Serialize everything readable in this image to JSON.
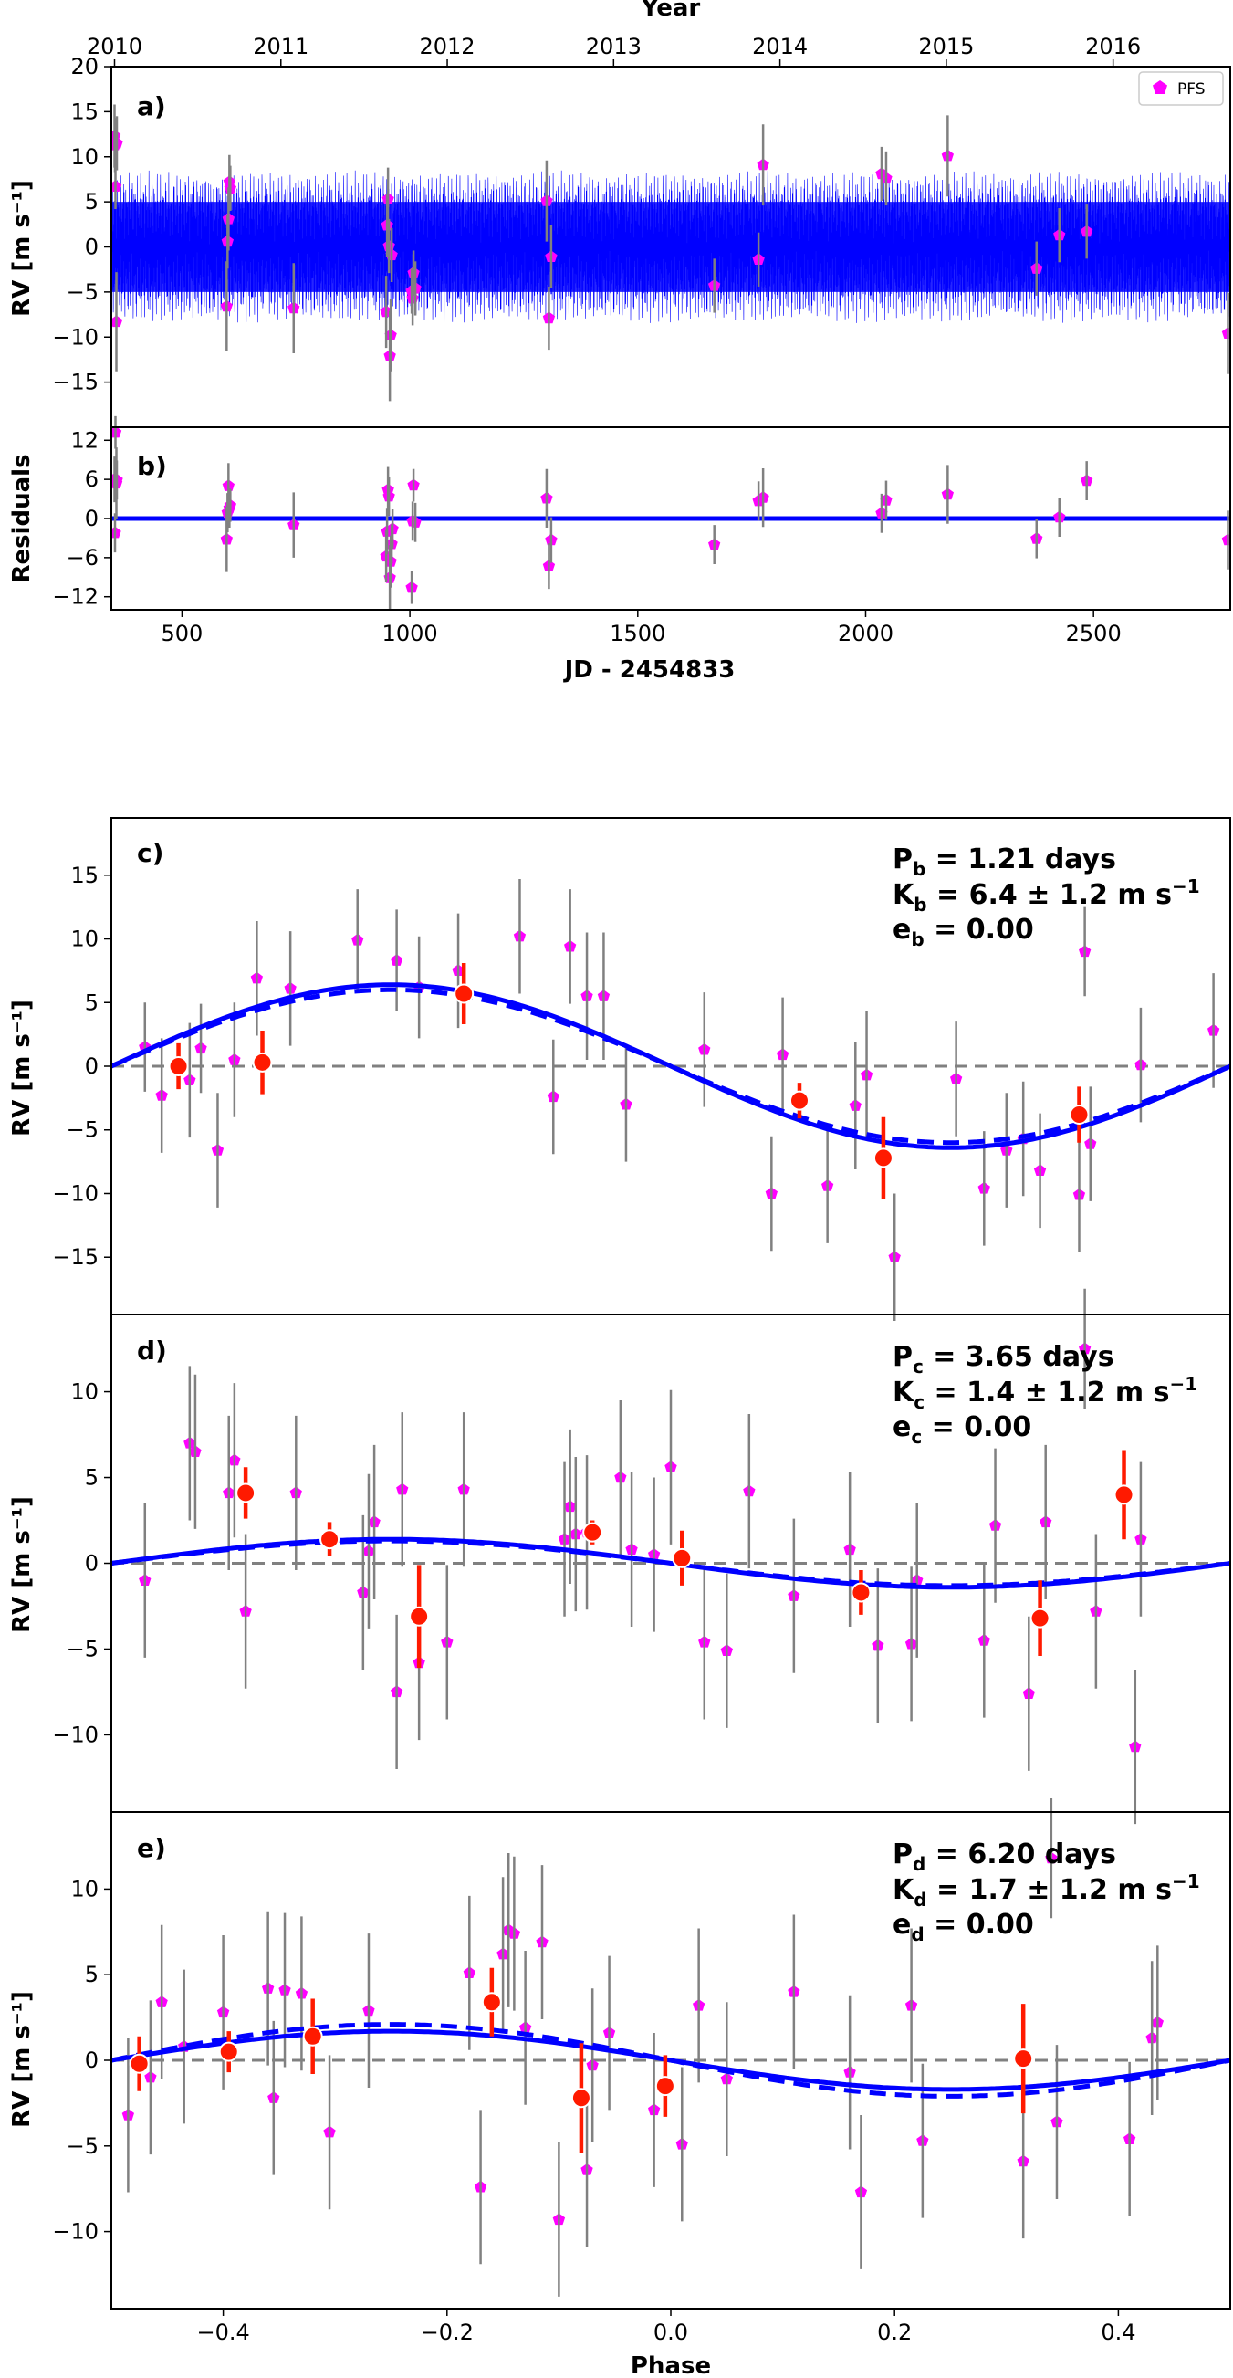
{
  "chart_data": [
    {
      "type": "scatter",
      "panel": "a)",
      "title": "",
      "xlabel": "",
      "ylabel": "RV [m s⁻¹]",
      "top_axis_label": "Year",
      "top_ticks": [
        "2010",
        "2011",
        "2012",
        "2013",
        "2014",
        "2015",
        "2016"
      ],
      "top_tick_jd": [
        352,
        717,
        1082,
        1447,
        1812,
        2177,
        2543
      ],
      "xlim": [
        345,
        2800
      ],
      "ylim": [
        -20,
        20
      ],
      "yticks": [
        -15,
        -10,
        -5,
        0,
        5,
        10,
        15,
        20
      ],
      "legend": {
        "label": "PFS",
        "location": "top-right"
      },
      "model": {
        "description": "3-planet Keplerian model curve",
        "amplitude_m_s": 8.5
      },
      "series": [
        {
          "name": "PFS",
          "x": [
            352,
            353,
            354,
            356,
            357,
            598,
            600,
            602,
            604,
            606,
            745,
            948,
            950,
            952,
            954,
            956,
            958,
            960,
            1004,
            1006,
            1008,
            1012,
            1300,
            1305,
            1310,
            1668,
            1765,
            1775,
            2035,
            2045,
            2180,
            2375,
            2425,
            2485,
            2795
          ],
          "y": [
            12.3,
            11.3,
            6.7,
            -8.3,
            11.5,
            -6.6,
            0.6,
            3.1,
            7.2,
            6.5,
            -6.8,
            -7.2,
            2.4,
            5.3,
            0.1,
            -12.1,
            -9.8,
            -0.9,
            -4.9,
            -5.7,
            -2.9,
            -4.6,
            5.1,
            -7.9,
            -1.1,
            -4.3,
            -1.4,
            9.1,
            8.1,
            7.6,
            10.1,
            -2.4,
            1.3,
            1.7,
            -9.6
          ],
          "err": [
            3.5,
            3,
            2.5,
            5.5,
            3,
            5,
            3,
            3.5,
            3,
            2.5,
            5,
            4,
            3.5,
            3.5,
            3,
            5,
            4,
            3,
            2.5,
            3,
            2.5,
            3,
            4.5,
            3.5,
            3.5,
            3,
            3,
            4.5,
            3,
            3,
            4.5,
            3,
            3,
            3,
            4.5
          ]
        }
      ]
    },
    {
      "type": "scatter",
      "panel": "b)",
      "xlabel": "JD - 2454833",
      "ylabel": "Residuals",
      "xlim": [
        345,
        2800
      ],
      "xticks": [
        500,
        1000,
        1500,
        2000,
        2500
      ],
      "ylim": [
        -14,
        14
      ],
      "yticks": [
        -12,
        -6,
        0,
        6,
        12
      ],
      "series": [
        {
          "name": "PFS",
          "x": [
            352,
            353,
            354,
            356,
            357,
            598,
            600,
            602,
            604,
            606,
            745,
            948,
            950,
            952,
            954,
            956,
            958,
            960,
            962,
            1004,
            1006,
            1008,
            1012,
            1300,
            1305,
            1310,
            1668,
            1765,
            1775,
            2035,
            2045,
            2180,
            2375,
            2425,
            2485,
            2795
          ],
          "y": [
            6,
            -2.2,
            13.2,
            5.4,
            5.9,
            -3.2,
            0.9,
            5,
            1.6,
            2,
            -1,
            -5.8,
            -2,
            4.4,
            3.4,
            -9.1,
            -6.6,
            -3.9,
            -1.6,
            -10.6,
            -0.4,
            5.1,
            -0.6,
            3.1,
            -7.3,
            -3.3,
            -4,
            2.7,
            3.2,
            0.8,
            2.8,
            3.7,
            -3.1,
            0.2,
            5.8,
            -3.3
          ],
          "err": [
            3.5,
            3,
            2.5,
            5.5,
            3,
            5,
            3,
            3.5,
            3,
            2.5,
            5,
            4,
            3.5,
            3.5,
            3,
            5,
            4,
            3,
            3,
            2.5,
            3,
            2.5,
            3,
            4.5,
            3.5,
            3.5,
            3,
            3,
            4.5,
            3,
            3,
            4.5,
            3,
            3,
            3,
            4.5
          ]
        }
      ]
    },
    {
      "type": "scatter",
      "panel": "c)",
      "xlabel": "",
      "ylabel": "RV [m s⁻¹]",
      "xlim": [
        -0.5,
        0.5
      ],
      "ylim": [
        -19.5,
        19.5
      ],
      "yticks": [
        -15,
        -10,
        -5,
        0,
        5,
        10,
        15
      ],
      "annotation": {
        "period": "P",
        "sub_p": "b",
        "period_text": " = 1.21 days",
        "amp": "K",
        "sub_k": "b",
        "amp_text": " = 6.4 ± 1.2 m s",
        "amp_exp": "−1",
        "ecc": "e",
        "sub_e": "b",
        "ecc_text": " = 0.00"
      },
      "model": {
        "solid_amplitude": 6.4,
        "dashed_amplitude": 6.0
      },
      "series": [
        {
          "name": "PFS",
          "x": [
            -0.47,
            -0.455,
            -0.43,
            -0.42,
            -0.405,
            -0.39,
            -0.37,
            -0.34,
            -0.28,
            -0.245,
            -0.225,
            -0.19,
            -0.135,
            -0.105,
            -0.09,
            -0.075,
            -0.06,
            -0.04,
            0.03,
            0.09,
            0.1,
            0.14,
            0.165,
            0.175,
            0.2,
            0.255,
            0.28,
            0.3,
            0.315,
            0.33,
            0.365,
            0.37,
            0.375,
            0.42,
            0.485
          ],
          "y": [
            1.5,
            -2.3,
            -1.1,
            1.4,
            -6.6,
            0.5,
            6.9,
            6.1,
            9.9,
            8.3,
            6.2,
            7.5,
            10.2,
            -2.4,
            9.4,
            5.5,
            5.5,
            -3,
            1.3,
            -10,
            0.9,
            -9.4,
            -3.1,
            -0.7,
            -15,
            -1,
            -9.6,
            -6.6,
            -5.7,
            -8.2,
            -10.1,
            9,
            -6.1,
            0.1,
            2.8
          ],
          "err": [
            3.5,
            4.5,
            4.5,
            3.5,
            4.5,
            4.5,
            4.5,
            4.5,
            4,
            4,
            4,
            4.5,
            4.5,
            4.5,
            4.5,
            5,
            5,
            4.5,
            4.5,
            4.5,
            4.5,
            4.5,
            5,
            5,
            5,
            4.5,
            4.5,
            4.5,
            4.5,
            4.5,
            4.5,
            3.5,
            4.5,
            4.5,
            4.5
          ]
        },
        {
          "name": "Binned",
          "x": [
            -0.44,
            -0.365,
            -0.185,
            0.115,
            0.19,
            0.365
          ],
          "y": [
            0,
            0.3,
            5.7,
            -2.7,
            -7.2,
            -3.8
          ],
          "err": [
            1.8,
            2.5,
            2.4,
            1.4,
            3.2,
            2.2
          ]
        }
      ]
    },
    {
      "type": "scatter",
      "panel": "d)",
      "xlabel": "",
      "ylabel": "RV [m s⁻¹]",
      "xlim": [
        -0.5,
        0.5
      ],
      "ylim": [
        -14.5,
        14.5
      ],
      "yticks": [
        -10,
        -5,
        0,
        5,
        10
      ],
      "annotation": {
        "period": "P",
        "sub_p": "c",
        "period_text": " = 3.65 days",
        "amp": "K",
        "sub_k": "c",
        "amp_text": " = 1.4 ± 1.2 m s",
        "amp_exp": "−1",
        "ecc": "e",
        "sub_e": "c",
        "ecc_text": " = 0.00"
      },
      "model": {
        "solid_amplitude": 1.4,
        "dashed_amplitude": 1.3
      },
      "series": [
        {
          "name": "PFS",
          "x": [
            -0.47,
            -0.43,
            -0.425,
            -0.395,
            -0.39,
            -0.38,
            -0.335,
            -0.275,
            -0.27,
            -0.265,
            -0.245,
            -0.24,
            -0.225,
            -0.2,
            -0.185,
            -0.095,
            -0.09,
            -0.085,
            -0.075,
            -0.045,
            -0.035,
            -0.015,
            0.0,
            0.03,
            0.05,
            0.07,
            0.11,
            0.16,
            0.185,
            0.215,
            0.22,
            0.28,
            0.29,
            0.32,
            0.335,
            0.37,
            0.38,
            0.415,
            0.42
          ],
          "y": [
            -1,
            7,
            6.5,
            4.1,
            6,
            -2.8,
            4.1,
            -1.7,
            0.7,
            2.4,
            -7.5,
            4.3,
            -5.8,
            -4.6,
            4.3,
            1.4,
            3.3,
            1.7,
            1.8,
            5,
            0.8,
            0.5,
            5.6,
            -4.6,
            -5.1,
            4.2,
            -1.9,
            0.8,
            -4.8,
            -4.7,
            -1,
            -4.5,
            2.2,
            -7.6,
            2.4,
            12.5,
            -2.8,
            -10.7,
            1.4
          ],
          "err": [
            4.5,
            4.5,
            4.5,
            4.5,
            4.5,
            4.5,
            4.5,
            4.5,
            4.5,
            4.5,
            4.5,
            4.5,
            4.5,
            4.5,
            4.5,
            4.5,
            4.5,
            4.5,
            4.5,
            4.5,
            4.5,
            4.5,
            4.5,
            4.5,
            4.5,
            4.5,
            4.5,
            4.5,
            4.5,
            4.5,
            4.5,
            4.5,
            4.5,
            4.5,
            4.5,
            3.5,
            4.5,
            4.5,
            4.5
          ]
        },
        {
          "name": "Binned",
          "x": [
            -0.38,
            -0.305,
            -0.225,
            -0.07,
            0.01,
            0.17,
            0.33,
            0.405
          ],
          "y": [
            4.1,
            1.4,
            -3.1,
            1.8,
            0.3,
            -1.7,
            -3.2,
            4
          ],
          "err": [
            1.5,
            1,
            3,
            0.7,
            1.6,
            1.3,
            2.2,
            2.6
          ]
        }
      ]
    },
    {
      "type": "scatter",
      "panel": "e)",
      "xlabel": "Phase",
      "ylabel": "RV [m s⁻¹]",
      "xlim": [
        -0.5,
        0.5
      ],
      "xticks": [
        -0.4,
        -0.2,
        0.0,
        0.2,
        0.4
      ],
      "xticklabels": [
        "−0.4",
        "−0.2",
        "0.0",
        "0.2",
        "0.4"
      ],
      "ylim": [
        -14.5,
        14.5
      ],
      "yticks": [
        -10,
        -5,
        0,
        5,
        10
      ],
      "annotation": {
        "period": "P",
        "sub_p": "d",
        "period_text": " = 6.20 days",
        "amp": "K",
        "sub_k": "d",
        "amp_text": " = 1.7 ± 1.2 m s",
        "amp_exp": "−1",
        "ecc": "e",
        "sub_e": "d",
        "ecc_text": " = 0.00"
      },
      "model": {
        "solid_amplitude": 1.7,
        "dashed_amplitude": 2.1
      },
      "series": [
        {
          "name": "PFS",
          "x": [
            -0.485,
            -0.465,
            -0.455,
            -0.435,
            -0.4,
            -0.36,
            -0.355,
            -0.345,
            -0.33,
            -0.305,
            -0.27,
            -0.18,
            -0.17,
            -0.15,
            -0.145,
            -0.14,
            -0.13,
            -0.115,
            -0.1,
            -0.075,
            -0.07,
            -0.055,
            -0.015,
            0.01,
            0.025,
            0.05,
            0.11,
            0.16,
            0.17,
            0.215,
            0.225,
            0.315,
            0.34,
            0.345,
            0.41,
            0.43,
            0.435
          ],
          "y": [
            -3.2,
            -1,
            3.4,
            0.8,
            2.8,
            4.2,
            -2.2,
            4.1,
            3.9,
            -4.2,
            2.9,
            5.1,
            -7.4,
            6.2,
            7.6,
            7.4,
            1.9,
            6.9,
            -9.3,
            -6.4,
            -0.3,
            1.6,
            -2.9,
            -4.9,
            3.2,
            -1.1,
            4,
            -0.7,
            -7.7,
            3.2,
            -4.7,
            -5.9,
            11.8,
            -3.6,
            -4.6,
            1.3,
            2.2
          ],
          "err": [
            4.5,
            4.5,
            4.5,
            4.5,
            4.5,
            4.5,
            4.5,
            4.5,
            4.5,
            4.5,
            4.5,
            4.5,
            4.5,
            4.5,
            4.5,
            4.5,
            4.5,
            4.5,
            4.5,
            4.5,
            4.5,
            4.5,
            4.5,
            4.5,
            4.5,
            4.5,
            4.5,
            4.5,
            4.5,
            4.5,
            4.5,
            4.5,
            3.5,
            4.5,
            4.5,
            4.5,
            4.5
          ]
        },
        {
          "name": "Binned",
          "x": [
            -0.475,
            -0.395,
            -0.32,
            -0.16,
            -0.08,
            -0.005,
            0.315
          ],
          "y": [
            -0.2,
            0.5,
            1.4,
            3.4,
            -2.2,
            -1.5,
            0.1
          ],
          "err": [
            1.6,
            1.2,
            2.2,
            2,
            3.2,
            1.8,
            3.2
          ]
        }
      ]
    }
  ]
}
